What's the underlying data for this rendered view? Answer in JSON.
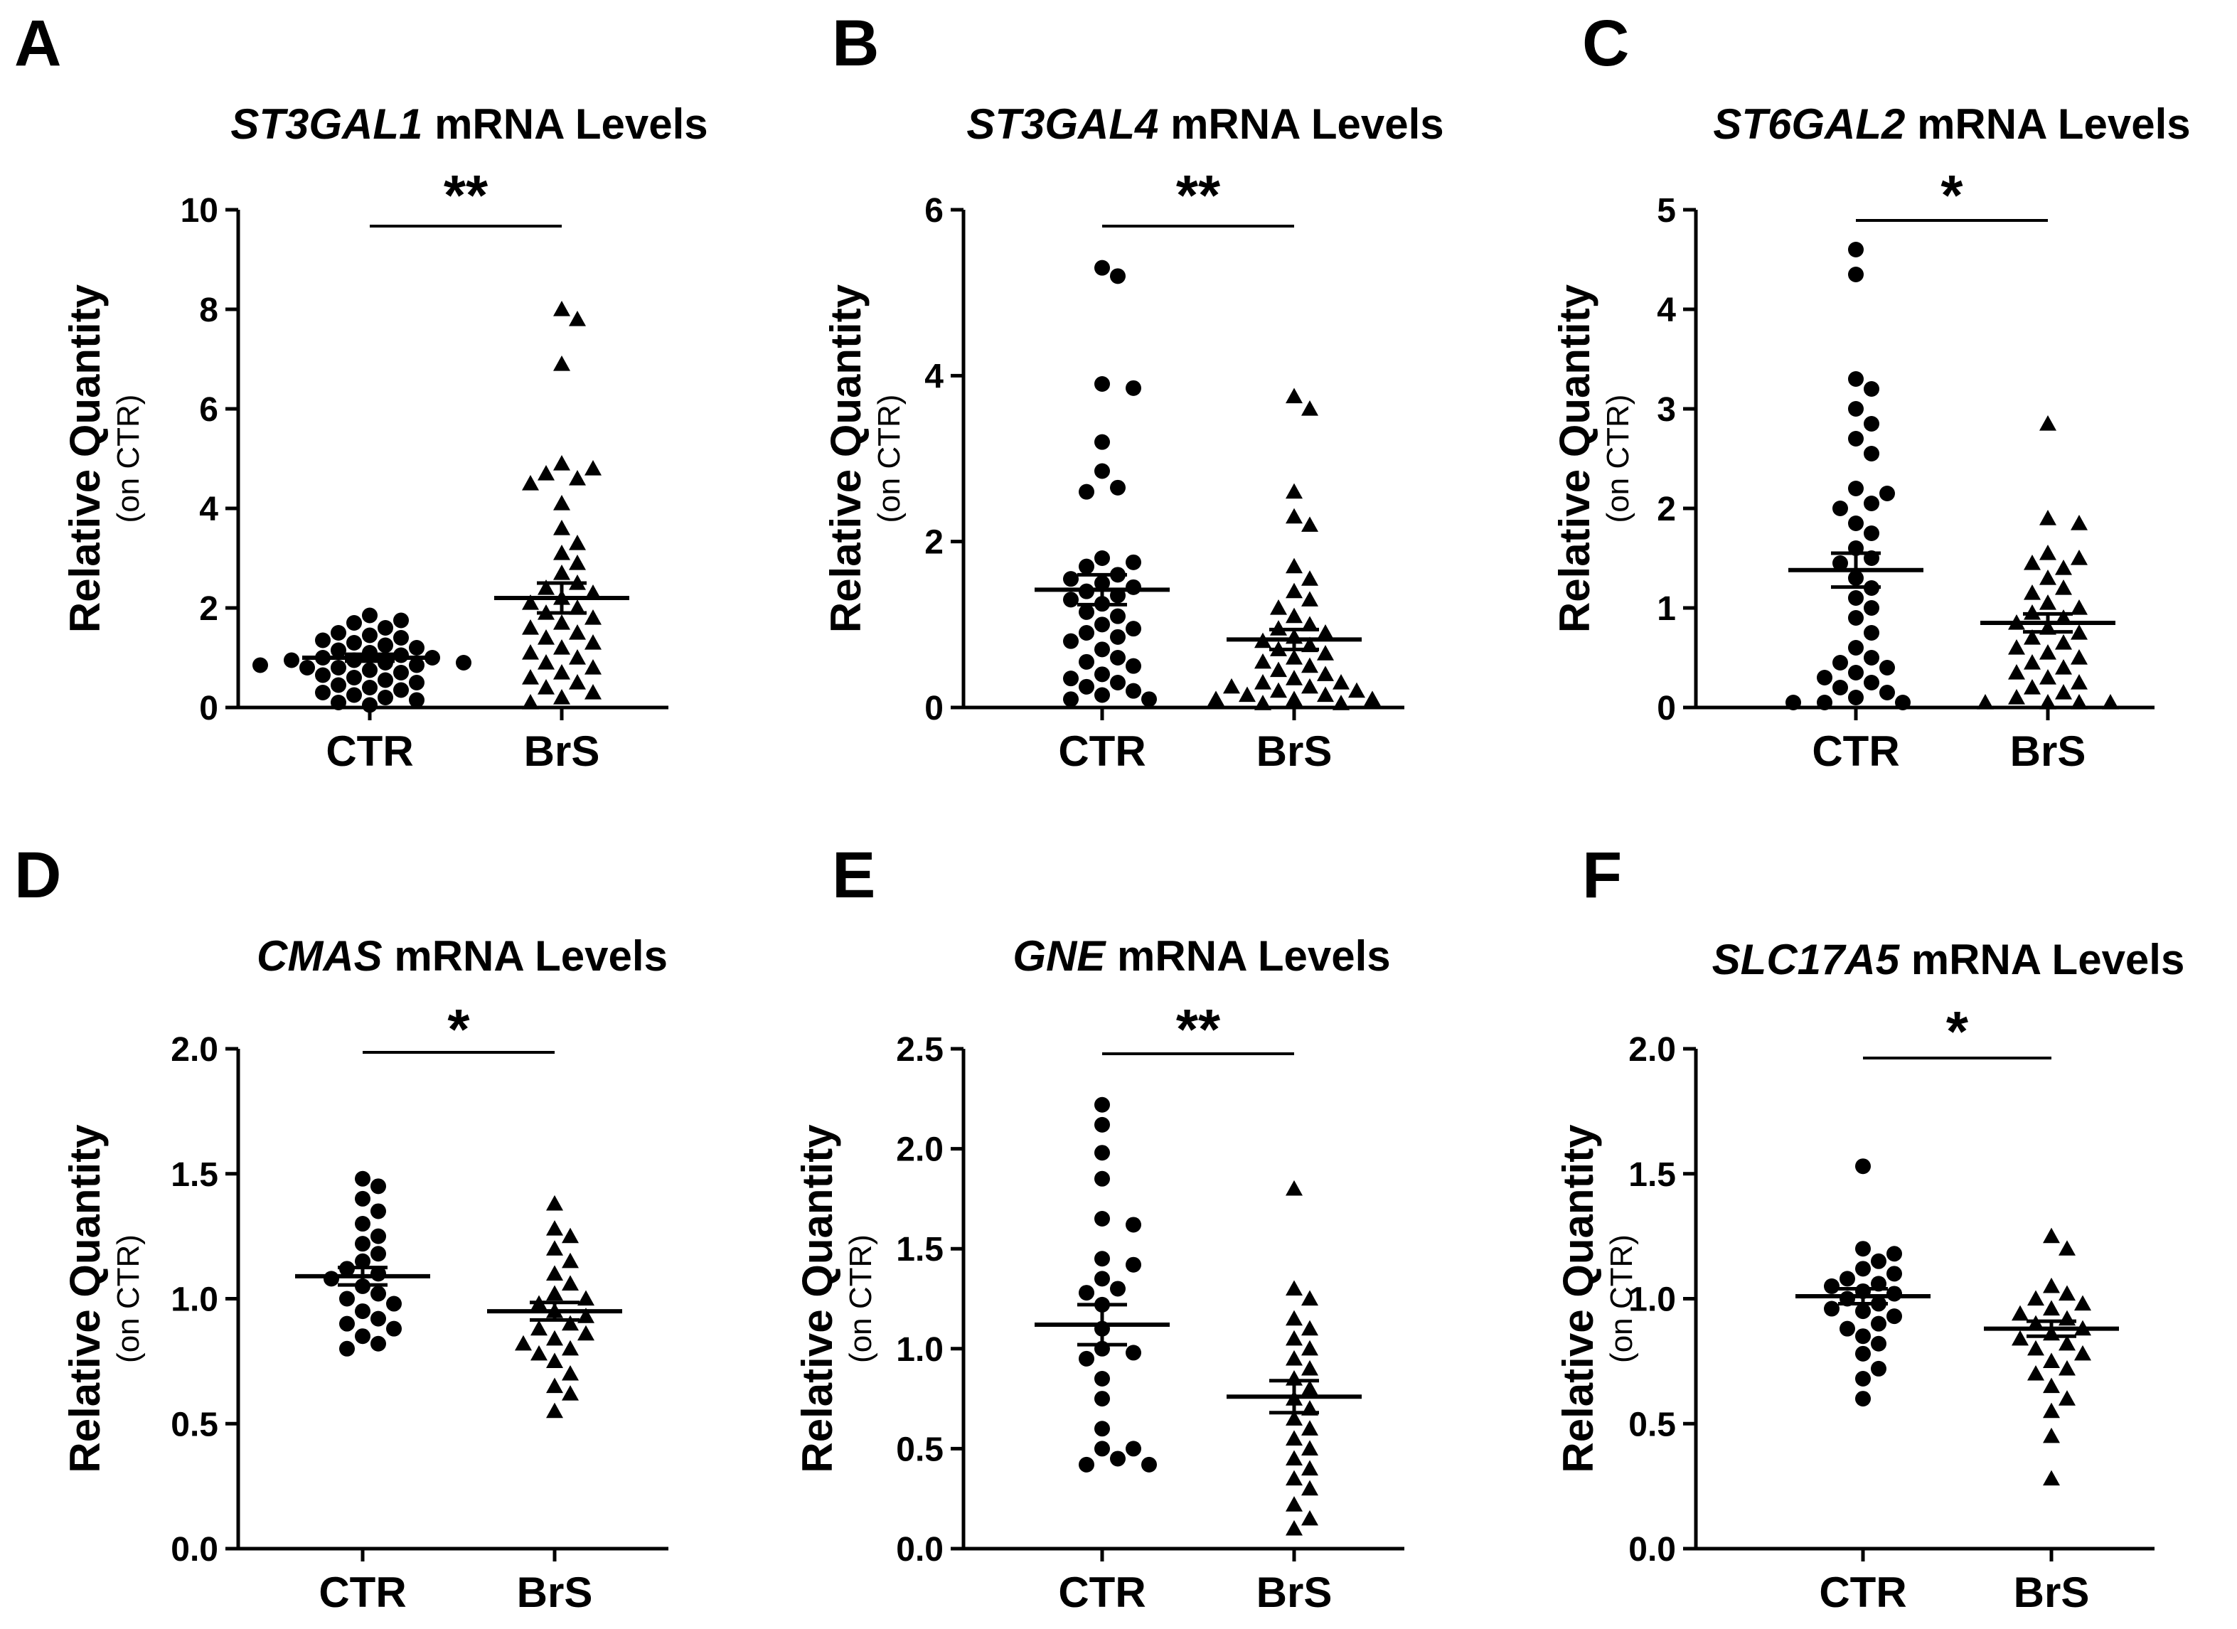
{
  "figure": {
    "panels": [
      {
        "letter": "A",
        "gene": "ST3GAL1",
        "title_suffix": " mRNA Levels"
      },
      {
        "letter": "B",
        "gene": "ST3GAL4",
        "title_suffix": " mRNA Levels"
      },
      {
        "letter": "C",
        "gene": "ST6GAL2",
        "title_suffix": " mRNA Levels"
      },
      {
        "letter": "D",
        "gene": "CMAS",
        "title_suffix": " mRNA Levels"
      },
      {
        "letter": "E",
        "gene": "GNE",
        "title_suffix": " mRNA Levels"
      },
      {
        "letter": "F",
        "gene": "SLC17A5",
        "title_suffix": " mRNA Levels"
      }
    ]
  },
  "chart_data": [
    {
      "type": "scatter",
      "title": "ST3GAL1 mRNA Levels",
      "ylabel": "Relative Quantity",
      "ylabel_sub": "(on CTR)",
      "categories": [
        "CTR",
        "BrS"
      ],
      "ylim": [
        0,
        10
      ],
      "yticks": [
        "0",
        "2",
        "4",
        "6",
        "8",
        "10"
      ],
      "significance": "**",
      "series": [
        {
          "name": "CTR",
          "marker": "circle",
          "mean": 1.0,
          "sem": 0.07,
          "values": [
            1.85,
            1.75,
            1.7,
            1.6,
            1.5,
            1.45,
            1.4,
            1.35,
            1.3,
            1.25,
            1.2,
            1.15,
            1.1,
            1.05,
            1.0,
            1.0,
            0.95,
            0.95,
            0.9,
            0.9,
            0.85,
            0.85,
            0.8,
            0.8,
            0.75,
            0.7,
            0.65,
            0.6,
            0.55,
            0.5,
            0.45,
            0.4,
            0.35,
            0.3,
            0.25,
            0.2,
            0.15,
            0.1,
            0.05
          ]
        },
        {
          "name": "BrS",
          "marker": "triangle",
          "mean": 2.2,
          "sem": 0.3,
          "values": [
            8.0,
            7.8,
            6.9,
            4.9,
            4.8,
            4.7,
            4.6,
            4.5,
            4.1,
            3.6,
            3.3,
            3.1,
            2.9,
            2.7,
            2.5,
            2.4,
            2.3,
            2.2,
            2.1,
            2.0,
            1.9,
            1.8,
            1.7,
            1.6,
            1.5,
            1.4,
            1.3,
            1.2,
            1.1,
            1.0,
            0.9,
            0.8,
            0.7,
            0.6,
            0.5,
            0.4,
            0.3,
            0.2,
            0.1
          ]
        }
      ]
    },
    {
      "type": "scatter",
      "title": "ST3GAL4 mRNA Levels",
      "ylabel": "Relative Quantity",
      "ylabel_sub": "(on CTR)",
      "categories": [
        "CTR",
        "BrS"
      ],
      "ylim": [
        0,
        6
      ],
      "yticks": [
        "0",
        "2",
        "4",
        "6"
      ],
      "significance": "**",
      "series": [
        {
          "name": "CTR",
          "marker": "circle",
          "mean": 1.42,
          "sem": 0.18,
          "values": [
            5.3,
            5.2,
            3.9,
            3.85,
            3.2,
            2.85,
            2.65,
            2.6,
            1.8,
            1.75,
            1.7,
            1.6,
            1.55,
            1.5,
            1.45,
            1.4,
            1.35,
            1.3,
            1.25,
            1.15,
            1.1,
            1.0,
            0.95,
            0.9,
            0.85,
            0.8,
            0.7,
            0.6,
            0.55,
            0.5,
            0.4,
            0.35,
            0.3,
            0.25,
            0.2,
            0.15,
            0.1,
            0.1
          ]
        },
        {
          "name": "BrS",
          "marker": "triangle",
          "mean": 0.82,
          "sem": 0.12,
          "values": [
            3.75,
            3.6,
            2.6,
            2.3,
            2.2,
            1.7,
            1.55,
            1.4,
            1.3,
            1.2,
            1.1,
            1.0,
            0.95,
            0.9,
            0.85,
            0.8,
            0.75,
            0.7,
            0.65,
            0.6,
            0.55,
            0.5,
            0.45,
            0.4,
            0.35,
            0.3,
            0.3,
            0.25,
            0.25,
            0.2,
            0.2,
            0.15,
            0.15,
            0.1,
            0.1,
            0.1,
            0.05,
            0.05
          ]
        }
      ]
    },
    {
      "type": "scatter",
      "title": "ST6GAL2 mRNA Levels",
      "ylabel": "Relative Quantity",
      "ylabel_sub": "(on CTR)",
      "categories": [
        "CTR",
        "BrS"
      ],
      "ylim": [
        0,
        5
      ],
      "yticks": [
        "0",
        "1",
        "2",
        "3",
        "4",
        "5"
      ],
      "significance": "*",
      "series": [
        {
          "name": "CTR",
          "marker": "circle",
          "mean": 1.38,
          "sem": 0.17,
          "values": [
            4.6,
            4.35,
            3.3,
            3.2,
            3.0,
            2.85,
            2.7,
            2.55,
            2.2,
            2.15,
            2.05,
            2.0,
            1.85,
            1.75,
            1.6,
            1.5,
            1.45,
            1.3,
            1.2,
            1.1,
            1.0,
            0.9,
            0.75,
            0.6,
            0.5,
            0.45,
            0.4,
            0.35,
            0.3,
            0.25,
            0.2,
            0.15,
            0.1,
            0.05,
            0.05,
            0.05
          ]
        },
        {
          "name": "BrS",
          "marker": "triangle",
          "mean": 0.85,
          "sem": 0.09,
          "values": [
            2.85,
            1.9,
            1.85,
            1.55,
            1.5,
            1.45,
            1.4,
            1.3,
            1.2,
            1.15,
            1.05,
            1.0,
            0.95,
            0.9,
            0.85,
            0.8,
            0.75,
            0.7,
            0.65,
            0.6,
            0.55,
            0.5,
            0.45,
            0.4,
            0.35,
            0.3,
            0.25,
            0.2,
            0.15,
            0.1,
            0.05,
            0.05,
            0.05,
            0.05
          ]
        }
      ]
    },
    {
      "type": "scatter",
      "title": "CMAS mRNA Levels",
      "ylabel": "Relative Quantity",
      "ylabel_sub": "(on CTR)",
      "categories": [
        "CTR",
        "BrS"
      ],
      "ylim": [
        0,
        2
      ],
      "yticks": [
        "0.0",
        "0.5",
        "1.0",
        "1.5",
        "2.0"
      ],
      "significance": "*",
      "series": [
        {
          "name": "CTR",
          "marker": "circle",
          "mean": 1.09,
          "sem": 0.035,
          "values": [
            1.48,
            1.45,
            1.4,
            1.35,
            1.3,
            1.22,
            1.18,
            1.15,
            1.12,
            1.1,
            1.08,
            1.05,
            1.02,
            1.0,
            0.98,
            0.95,
            0.92,
            0.9,
            0.88,
            0.85,
            0.82,
            0.8,
            1.25
          ]
        },
        {
          "name": "BrS",
          "marker": "triangle",
          "mean": 0.95,
          "sem": 0.035,
          "values": [
            1.38,
            1.28,
            1.25,
            1.2,
            1.15,
            1.1,
            1.06,
            1.02,
            1.0,
            0.98,
            0.95,
            0.93,
            0.9,
            0.88,
            0.86,
            0.84,
            0.82,
            0.8,
            0.78,
            0.75,
            0.7,
            0.65,
            0.62,
            0.55
          ]
        }
      ]
    },
    {
      "type": "scatter",
      "title": "GNE mRNA Levels",
      "ylabel": "Relative Quantity",
      "ylabel_sub": "(on CTR)",
      "categories": [
        "CTR",
        "BrS"
      ],
      "ylim": [
        0,
        2.5
      ],
      "yticks": [
        "0.0",
        "0.5",
        "1.0",
        "1.5",
        "2.0",
        "2.5"
      ],
      "significance": "**",
      "series": [
        {
          "name": "CTR",
          "marker": "circle",
          "mean": 1.12,
          "sem": 0.1,
          "values": [
            2.22,
            2.12,
            1.98,
            1.85,
            1.65,
            1.62,
            1.45,
            1.42,
            1.35,
            1.3,
            1.28,
            1.22,
            1.1,
            1.0,
            0.98,
            0.95,
            0.85,
            0.75,
            0.6,
            0.5,
            0.45,
            0.42,
            0.5,
            0.42
          ]
        },
        {
          "name": "BrS",
          "marker": "triangle",
          "mean": 0.76,
          "sem": 0.08,
          "values": [
            1.8,
            1.3,
            1.25,
            1.15,
            1.1,
            1.05,
            1.0,
            0.95,
            0.9,
            0.85,
            0.8,
            0.75,
            0.7,
            0.65,
            0.6,
            0.55,
            0.5,
            0.45,
            0.4,
            0.35,
            0.3,
            0.22,
            0.15,
            0.1
          ]
        }
      ]
    },
    {
      "type": "scatter",
      "title": "SLC17A5 mRNA Levels",
      "ylabel": "Relative Quantity",
      "ylabel_sub": "(on CTR)",
      "categories": [
        "CTR",
        "BrS"
      ],
      "ylim": [
        0,
        2
      ],
      "yticks": [
        "0.0",
        "0.5",
        "1.0",
        "1.5",
        "2.0"
      ],
      "significance": "*",
      "series": [
        {
          "name": "CTR",
          "marker": "circle",
          "mean": 1.01,
          "sem": 0.03,
          "values": [
            1.53,
            1.2,
            1.18,
            1.15,
            1.12,
            1.1,
            1.08,
            1.06,
            1.05,
            1.03,
            1.02,
            1.0,
            0.98,
            0.96,
            0.95,
            0.93,
            0.9,
            0.88,
            0.85,
            0.82,
            0.78,
            0.72,
            0.68,
            0.6
          ]
        },
        {
          "name": "BrS",
          "marker": "triangle",
          "mean": 0.88,
          "sem": 0.03,
          "values": [
            1.25,
            1.2,
            1.05,
            1.02,
            1.0,
            0.98,
            0.96,
            0.94,
            0.92,
            0.9,
            0.88,
            0.86,
            0.84,
            0.82,
            0.8,
            0.78,
            0.75,
            0.72,
            0.7,
            0.65,
            0.6,
            0.55,
            0.45,
            0.28
          ]
        }
      ]
    }
  ]
}
